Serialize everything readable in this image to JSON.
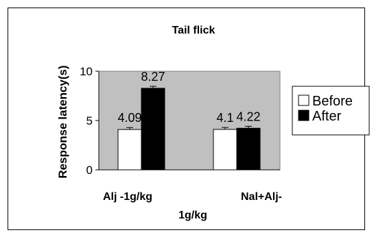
{
  "chart_data": {
    "type": "bar",
    "title": "Tail flick",
    "ylabel": "Response latency(s)",
    "xlabel": "",
    "categories": [
      [
        "Alj -1g/kg"
      ],
      [
        "Nal+Alj-",
        "1g/kg"
      ]
    ],
    "series": [
      {
        "name": "Before",
        "values": [
          4.09,
          4.1
        ],
        "color": "#ffffff"
      },
      {
        "name": "After",
        "values": [
          8.27,
          4.22
        ],
        "color": "#000000"
      }
    ],
    "data_labels": [
      [
        "4.09",
        "4.1"
      ],
      [
        "8.27",
        "4.22"
      ]
    ],
    "error": [
      [
        0.2,
        0.2
      ],
      [
        0.2,
        0.2
      ]
    ],
    "ylim": [
      0,
      10
    ],
    "yticks": [
      0,
      5,
      10
    ],
    "plot_background": "#c0c0c0",
    "legend_position": "right",
    "grid": false
  }
}
